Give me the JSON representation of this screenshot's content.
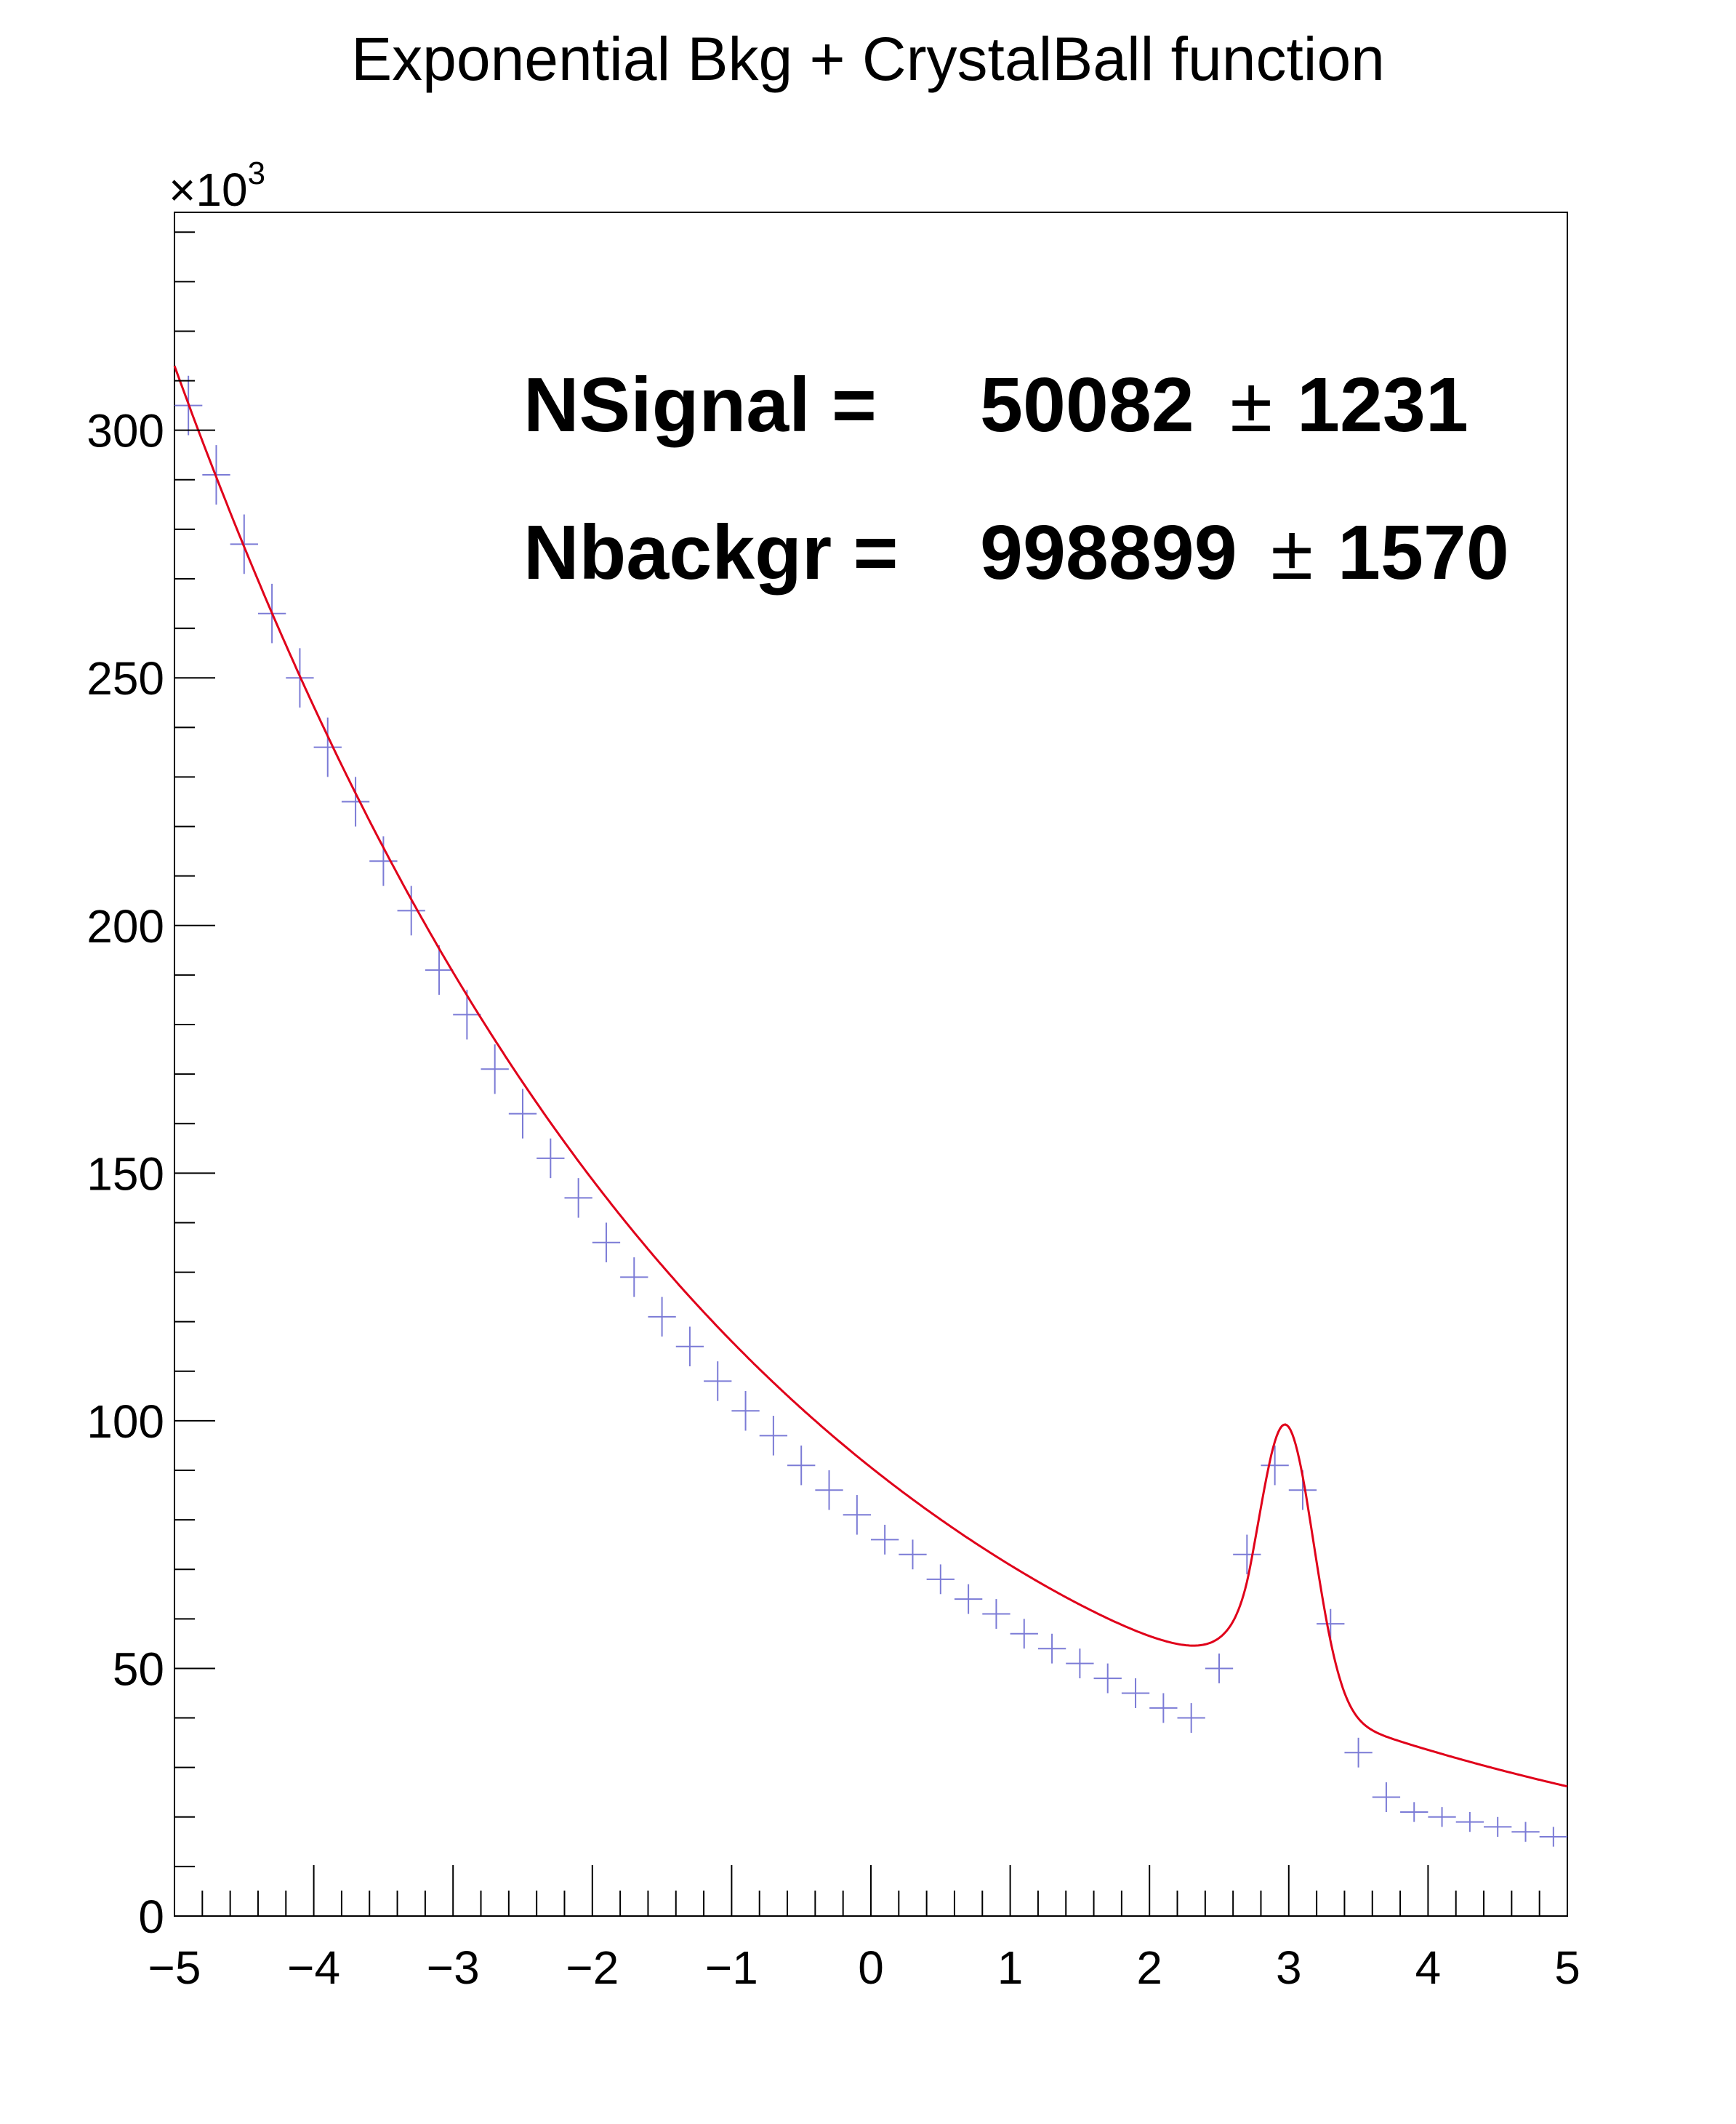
{
  "chart_data": {
    "type": "scatter",
    "title": "Exponential Bkg + CrystalBall function",
    "xlabel": "",
    "ylabel": "",
    "y_multiplier_label": "×10",
    "y_multiplier_exponent": "3",
    "xlim": [
      -5,
      5
    ],
    "ylim": [
      0,
      344
    ],
    "x_ticks": [
      "−5",
      "−4",
      "−3",
      "−2",
      "−1",
      "0",
      "1",
      "2",
      "3",
      "4",
      "5"
    ],
    "y_ticks": [
      "0",
      "50",
      "100",
      "150",
      "200",
      "250",
      "300"
    ],
    "grid": false,
    "legend": "none",
    "series": [
      {
        "role": "data points with error bars",
        "color": "#7b7bd6",
        "x_step": 0.2,
        "x": [
          -4.9,
          -4.7,
          -4.5,
          -4.3,
          -4.1,
          -3.9,
          -3.7,
          -3.5,
          -3.3,
          -3.1,
          -2.9,
          -2.7,
          -2.5,
          -2.3,
          -2.1,
          -1.9,
          -1.7,
          -1.5,
          -1.3,
          -1.1,
          -0.9,
          -0.7,
          -0.5,
          -0.3,
          -0.1,
          0.1,
          0.3,
          0.5,
          0.7,
          0.9,
          1.1,
          1.3,
          1.5,
          1.7,
          1.9,
          2.1,
          2.3,
          2.5,
          2.7,
          2.9,
          3.1,
          3.3,
          3.5,
          3.7,
          3.9,
          4.1,
          4.3,
          4.5,
          4.7,
          4.9
        ],
        "y": [
          305,
          291,
          277,
          263,
          250,
          236,
          225,
          213,
          203,
          191,
          182,
          171,
          162,
          153,
          145,
          136,
          129,
          121,
          115,
          108,
          102,
          97,
          91,
          86,
          81,
          76,
          73,
          68,
          64,
          61,
          57,
          54,
          51,
          48,
          45,
          42,
          40,
          50,
          73,
          91,
          86,
          59,
          33,
          24,
          21,
          20,
          19,
          18,
          17,
          16
        ],
        "err": [
          6,
          6,
          6,
          6,
          6,
          6,
          5,
          5,
          5,
          5,
          5,
          5,
          5,
          4,
          4,
          4,
          4,
          4,
          4,
          4,
          4,
          4,
          4,
          4,
          4,
          3,
          3,
          3,
          3,
          3,
          3,
          3,
          3,
          3,
          3,
          3,
          3,
          3,
          4,
          4,
          4,
          3,
          3,
          3,
          2,
          2,
          2,
          2,
          2,
          2
        ]
      },
      {
        "role": "fit curve",
        "color": "#e0001a",
        "background": {
          "A": 313,
          "x0": -5,
          "tau": 4.03
        },
        "signal": {
          "mean": 2.98,
          "sigma": 0.2,
          "amp": 56,
          "alpha": 1.3,
          "n": 3,
          "tail_side": "left"
        }
      }
    ],
    "annotations": [
      {
        "label": "NSignal =",
        "value": "50082",
        "pm": "±",
        "error": "1231"
      },
      {
        "label": "Nbackgr =",
        "value": "998899",
        "pm": "±",
        "error": "1570"
      }
    ]
  }
}
